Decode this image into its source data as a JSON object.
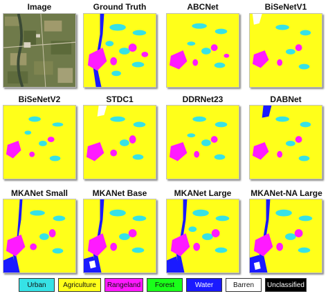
{
  "panels": [
    {
      "title": "Image",
      "kind": "photo"
    },
    {
      "title": "Ground Truth",
      "kind": "seg"
    },
    {
      "title": "ABCNet",
      "kind": "seg"
    },
    {
      "title": "BiSeNetV1",
      "kind": "seg"
    },
    {
      "title": "BiSeNetV2",
      "kind": "seg"
    },
    {
      "title": "STDC1",
      "kind": "seg"
    },
    {
      "title": "DDRNet23",
      "kind": "seg"
    },
    {
      "title": "DABNet",
      "kind": "seg"
    },
    {
      "title": "MKANet Small",
      "kind": "seg"
    },
    {
      "title": "MKANet Base",
      "kind": "seg"
    },
    {
      "title": "MKANet Large",
      "kind": "seg"
    },
    {
      "title": "MKANet-NA Large",
      "kind": "seg"
    }
  ],
  "legend": [
    {
      "label": "Urban",
      "color": "#36e2e6",
      "text_color": "#111111"
    },
    {
      "label": "Agriculture",
      "color": "#ffff1a",
      "text_color": "#111111"
    },
    {
      "label": "Rangeland",
      "color": "#ff1aff",
      "text_color": "#111111"
    },
    {
      "label": "Forest",
      "color": "#1aff1a",
      "text_color": "#111111"
    },
    {
      "label": "Water",
      "color": "#1a1aff",
      "text_color": "#ffffff"
    },
    {
      "label": "Barren",
      "color": "#ffffff",
      "text_color": "#111111"
    },
    {
      "label": "Unclassified",
      "color": "#000000",
      "text_color": "#ffffff"
    }
  ]
}
